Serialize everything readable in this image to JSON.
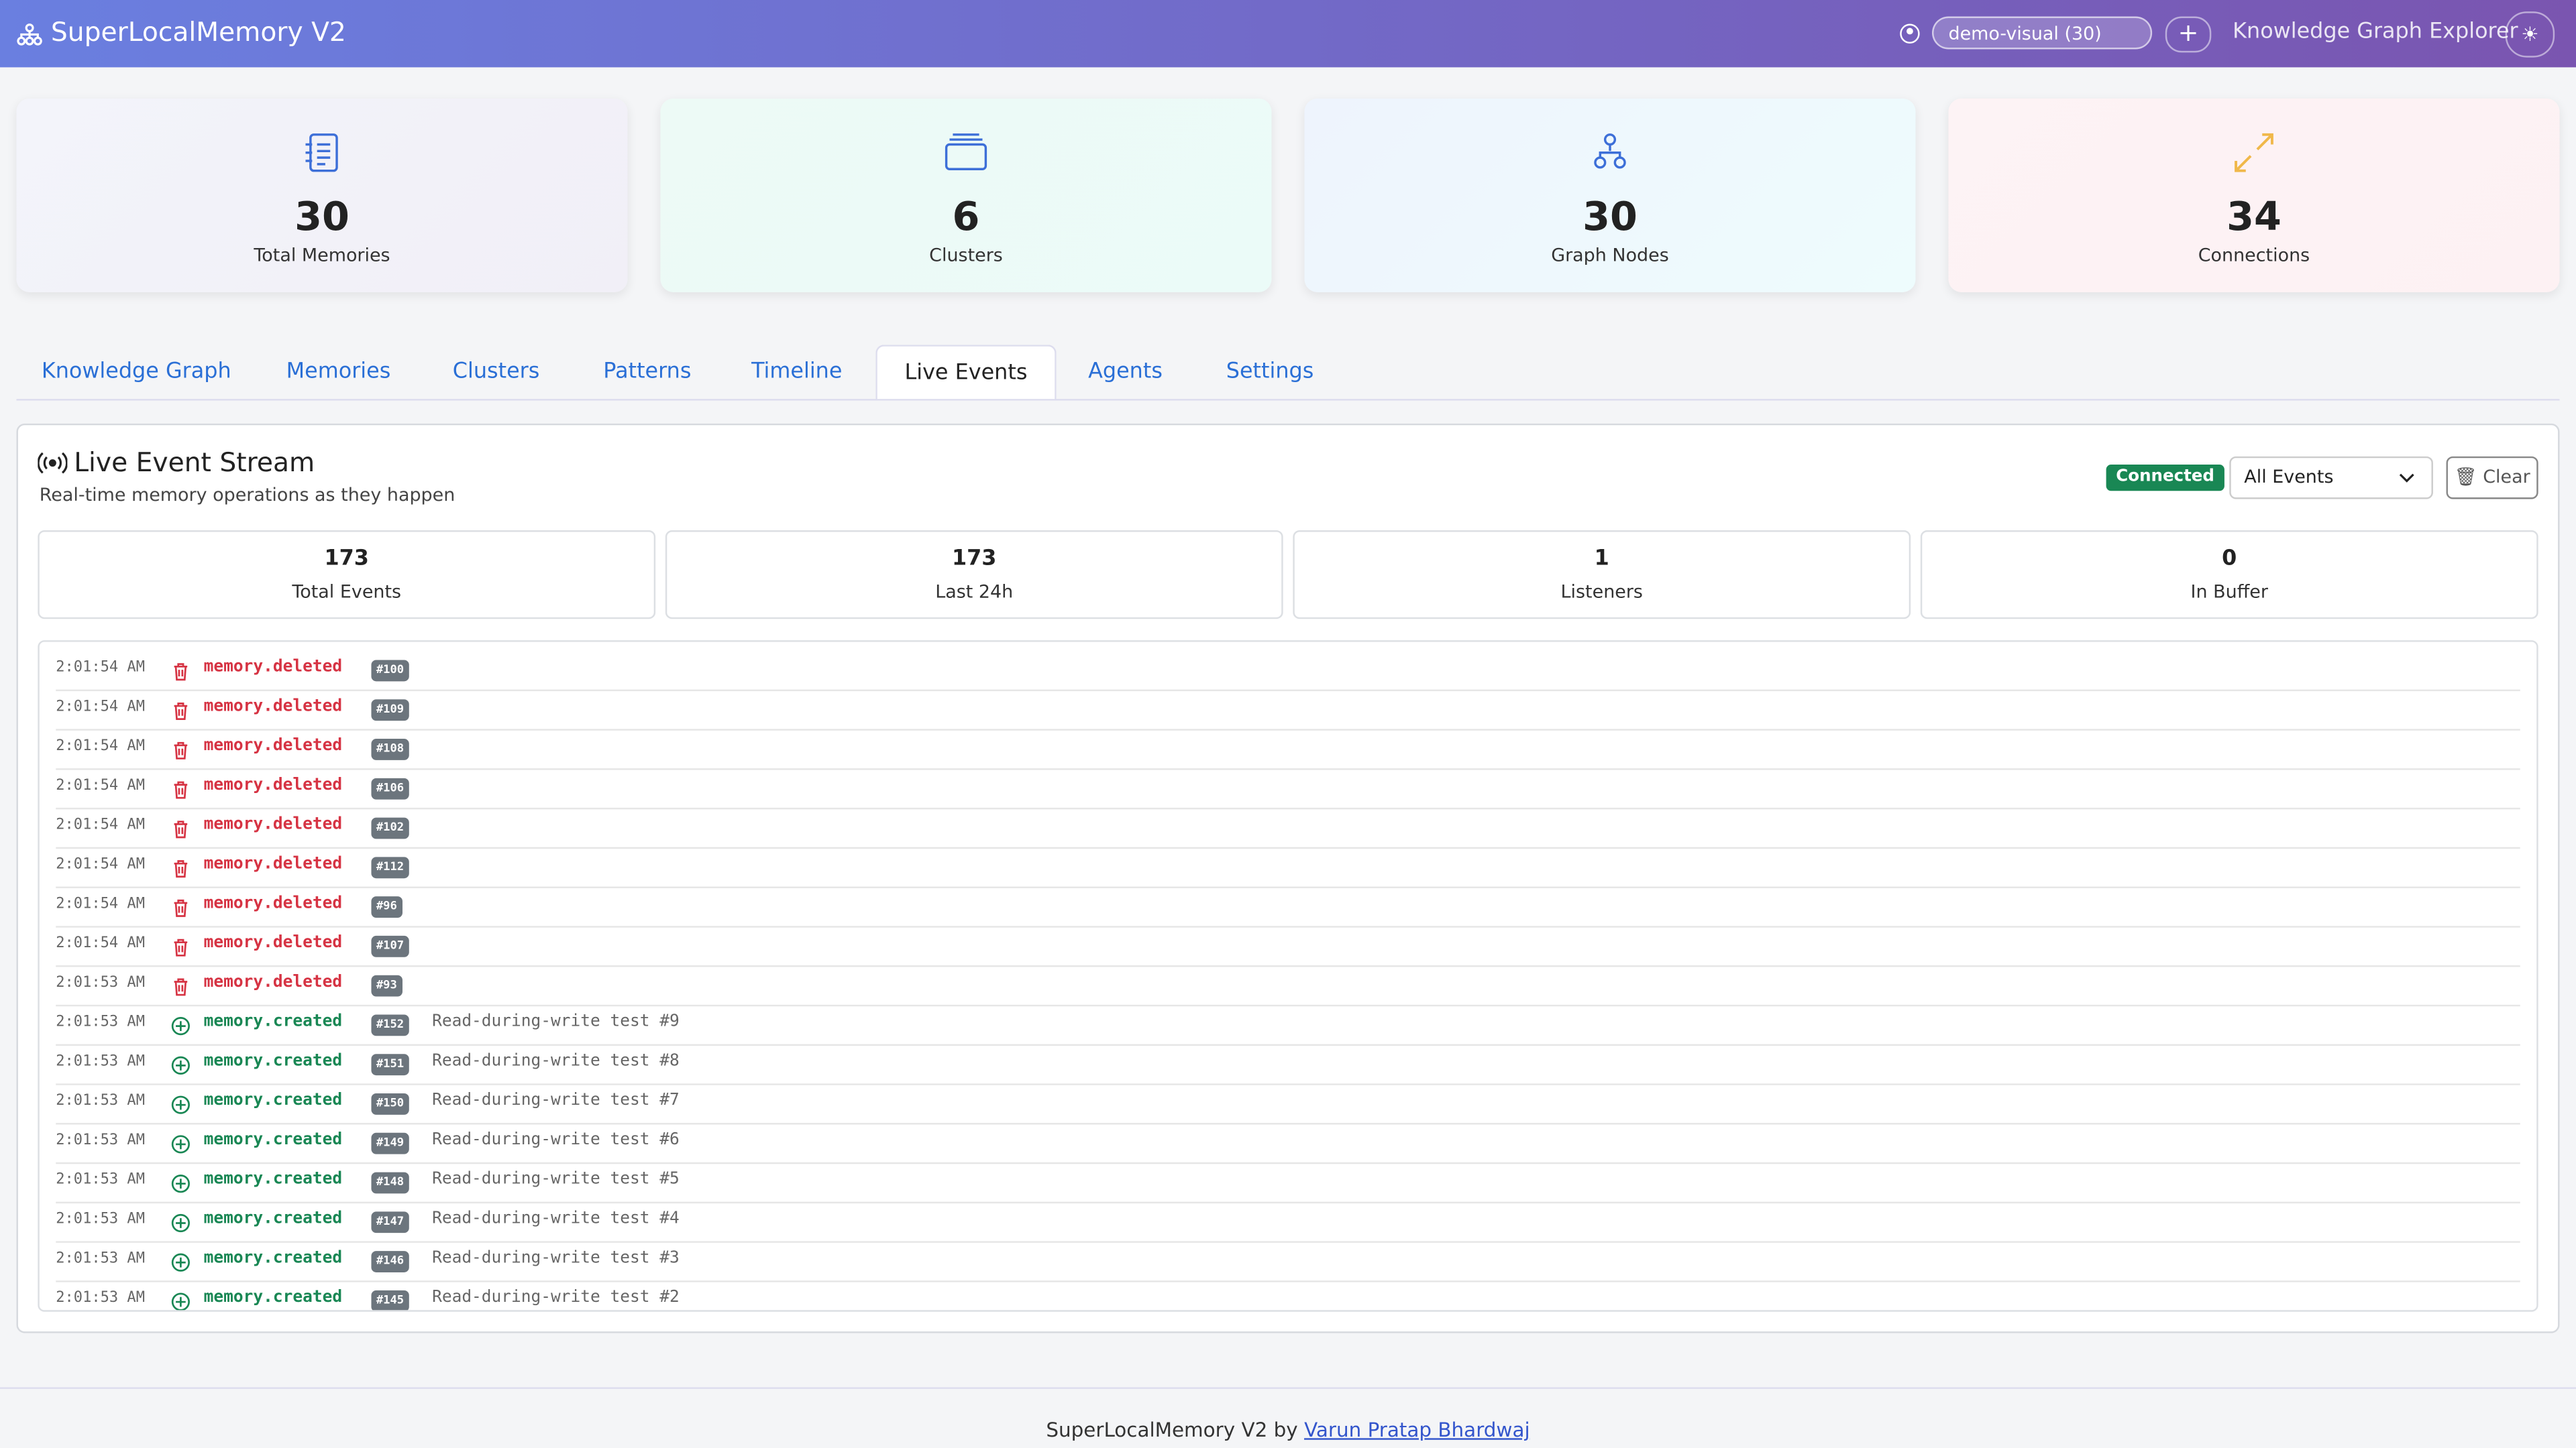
{
  "header": {
    "title": "SuperLocalMemory V2",
    "profile": "demo-visual (30)",
    "explorer": "Knowledge Graph Explorer"
  },
  "stats": [
    {
      "value": 30,
      "label": "Total Memories"
    },
    {
      "value": 6,
      "label": "Clusters"
    },
    {
      "value": 30,
      "label": "Graph Nodes"
    },
    {
      "value": 34,
      "label": "Connections"
    }
  ],
  "tabs": {
    "items": [
      "Knowledge Graph",
      "Memories",
      "Clusters",
      "Patterns",
      "Timeline",
      "Live Events",
      "Agents",
      "Settings"
    ],
    "active": 5
  },
  "live": {
    "title": "Live Event Stream",
    "subtitle": "Real-time memory operations as they happen",
    "status": "Connected",
    "filter": "All Events",
    "clear": "Clear",
    "stats": [
      {
        "value": 173,
        "label": "Total Events"
      },
      {
        "value": 173,
        "label": "Last 24h"
      },
      {
        "value": 1,
        "label": "Listeners"
      },
      {
        "value": 0,
        "label": "In Buffer"
      }
    ],
    "events": [
      {
        "time": "2:01:54 AM",
        "type": "memory.deleted",
        "id": "#100"
      },
      {
        "time": "2:01:54 AM",
        "type": "memory.deleted",
        "id": "#109"
      },
      {
        "time": "2:01:54 AM",
        "type": "memory.deleted",
        "id": "#108"
      },
      {
        "time": "2:01:54 AM",
        "type": "memory.deleted",
        "id": "#106"
      },
      {
        "time": "2:01:54 AM",
        "type": "memory.deleted",
        "id": "#102"
      },
      {
        "time": "2:01:54 AM",
        "type": "memory.deleted",
        "id": "#112"
      },
      {
        "time": "2:01:54 AM",
        "type": "memory.deleted",
        "id": "#96"
      },
      {
        "time": "2:01:54 AM",
        "type": "memory.deleted",
        "id": "#107"
      },
      {
        "time": "2:01:53 AM",
        "type": "memory.deleted",
        "id": "#93"
      },
      {
        "time": "2:01:53 AM",
        "type": "memory.created",
        "id": "#152",
        "message": "Read-during-write test #9"
      },
      {
        "time": "2:01:53 AM",
        "type": "memory.created",
        "id": "#151",
        "message": "Read-during-write test #8"
      },
      {
        "time": "2:01:53 AM",
        "type": "memory.created",
        "id": "#150",
        "message": "Read-during-write test #7"
      },
      {
        "time": "2:01:53 AM",
        "type": "memory.created",
        "id": "#149",
        "message": "Read-during-write test #6"
      },
      {
        "time": "2:01:53 AM",
        "type": "memory.created",
        "id": "#148",
        "message": "Read-during-write test #5"
      },
      {
        "time": "2:01:53 AM",
        "type": "memory.created",
        "id": "#147",
        "message": "Read-during-write test #4"
      },
      {
        "time": "2:01:53 AM",
        "type": "memory.created",
        "id": "#146",
        "message": "Read-during-write test #3"
      },
      {
        "time": "2:01:53 AM",
        "type": "memory.created",
        "id": "#145",
        "message": "Read-during-write test #2"
      }
    ]
  },
  "footer": {
    "text": "SuperLocalMemory V2 by",
    "link": "Varun Pratap Bhardwaj"
  }
}
